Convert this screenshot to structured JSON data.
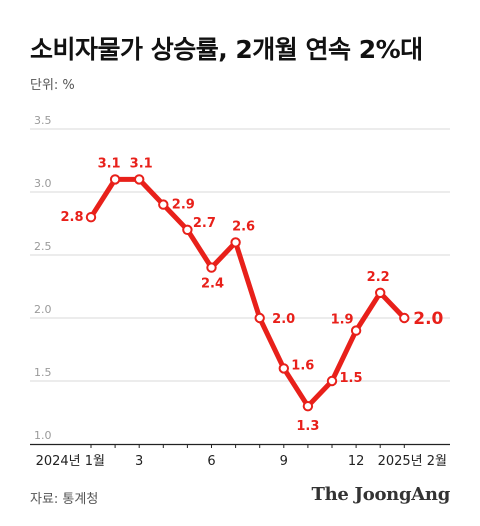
{
  "title": "소비자물가 상승률, 2개월 연속 2%대",
  "unit_label": "단위: %",
  "source": "자료: 통계청",
  "brand": "The JoongAng",
  "chart_data": {
    "type": "line",
    "x": [
      "2024-01",
      "2024-02",
      "2024-03",
      "2024-04",
      "2024-05",
      "2024-06",
      "2024-07",
      "2024-08",
      "2024-09",
      "2024-10",
      "2024-11",
      "2024-12",
      "2025-01",
      "2025-02"
    ],
    "x_tick_labels": [
      "2024년 1월",
      "",
      "3",
      "",
      "",
      "6",
      "",
      "",
      "9",
      "",
      "",
      "12",
      "",
      "2025년 2월"
    ],
    "series": [
      {
        "values": [
          2.8,
          3.1,
          3.1,
          2.9,
          2.7,
          2.4,
          2.6,
          2.0,
          1.6,
          1.3,
          1.5,
          1.9,
          2.2,
          2.0
        ]
      }
    ],
    "data_labels": [
      "2.8",
      "3.1",
      "3.1",
      "2.9",
      "2.7",
      "2.4",
      "2.6",
      "2.0",
      "1.6",
      "1.3",
      "1.5",
      "1.9",
      "2.2",
      "2.0"
    ],
    "ylim": [
      1.0,
      3.5
    ],
    "yticks": [
      1.0,
      1.5,
      2.0,
      2.5,
      3.0,
      3.5
    ],
    "ytick_labels": [
      "1.0",
      "1.5",
      "2.0",
      "2.5",
      "3.0",
      "3.5"
    ],
    "grid": true,
    "line_color": "#e8201a",
    "label_color": "#e8201a"
  }
}
